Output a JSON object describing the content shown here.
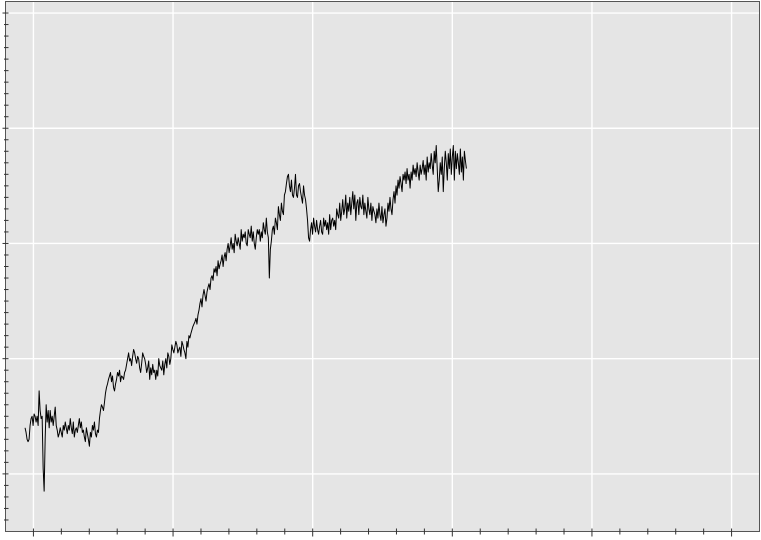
{
  "chart_data": {
    "type": "line",
    "title": "",
    "xlabel": "",
    "ylabel": "",
    "tick_labels_visible": false,
    "grid": true,
    "colors": {
      "panel": "#e5e5e5",
      "grid": "#ffffff",
      "line": "#000000",
      "frame": "#555555"
    },
    "xlim": [
      -0.2,
      5.2
    ],
    "ylim": [
      0.0,
      4.6
    ],
    "x_major_ticks": [
      0,
      1,
      2,
      3,
      4,
      5
    ],
    "x_minor_step": 0.2,
    "y_major_ticks": [
      0.5,
      1.5,
      2.5,
      3.5,
      4.5
    ],
    "y_minor_step": 0.1,
    "series": [
      {
        "x_start": -0.06,
        "x_step": 0.0072,
        "values": [
          0.9,
          0.86,
          0.8,
          0.78,
          0.8,
          0.92,
          0.98,
          1.0,
          0.92,
          1.02,
          1.0,
          0.95,
          1.0,
          0.92,
          1.22,
          1.05,
          0.98,
          1.0,
          0.55,
          0.35,
          0.8,
          1.1,
          0.95,
          1.05,
          0.9,
          1.05,
          0.95,
          1.0,
          0.92,
          1.0,
          1.08,
          0.92,
          0.88,
          0.82,
          0.85,
          0.9,
          0.86,
          0.82,
          0.92,
          0.88,
          0.95,
          0.9,
          0.85,
          0.92,
          0.88,
          0.98,
          0.9,
          0.85,
          0.95,
          0.82,
          0.88,
          0.9,
          0.86,
          0.92,
          0.98,
          0.9,
          0.95,
          0.86,
          0.88,
          0.82,
          0.78,
          0.9,
          0.85,
          0.8,
          0.74,
          0.86,
          0.82,
          0.92,
          0.88,
          0.95,
          0.85,
          0.82,
          0.88,
          0.86,
          0.98,
          1.05,
          1.1,
          1.08,
          1.05,
          1.12,
          1.2,
          1.25,
          1.28,
          1.32,
          1.35,
          1.38,
          1.3,
          1.35,
          1.25,
          1.22,
          1.28,
          1.32,
          1.38,
          1.35,
          1.4,
          1.3,
          1.35,
          1.34,
          1.32,
          1.38,
          1.4,
          1.45,
          1.5,
          1.55,
          1.48,
          1.5,
          1.44,
          1.52,
          1.58,
          1.55,
          1.5,
          1.46,
          1.52,
          1.5,
          1.42,
          1.38,
          1.46,
          1.55,
          1.52,
          1.5,
          1.45,
          1.38,
          1.42,
          1.48,
          1.32,
          1.42,
          1.36,
          1.45,
          1.38,
          1.4,
          1.32,
          1.4,
          1.35,
          1.5,
          1.44,
          1.42,
          1.4,
          1.48,
          1.36,
          1.45,
          1.5,
          1.42,
          1.55,
          1.52,
          1.45,
          1.5,
          1.62,
          1.58,
          1.55,
          1.6,
          1.65,
          1.62,
          1.55,
          1.58,
          1.6,
          1.52,
          1.65,
          1.62,
          1.58,
          1.55,
          1.5,
          1.65,
          1.6,
          1.7,
          1.68,
          1.72,
          1.75,
          1.78,
          1.8,
          1.82,
          1.85,
          1.8,
          1.88,
          1.92,
          1.98,
          2.02,
          1.95,
          2.05,
          2.1,
          2.05,
          2.0,
          2.08,
          2.12,
          2.15,
          2.1,
          2.2,
          2.22,
          2.18,
          2.28,
          2.25,
          2.3,
          2.22,
          2.35,
          2.28,
          2.32,
          2.35,
          2.4,
          2.3,
          2.38,
          2.42,
          2.35,
          2.45,
          2.5,
          2.42,
          2.48,
          2.55,
          2.45,
          2.5,
          2.42,
          2.58,
          2.52,
          2.48,
          2.55,
          2.5,
          2.45,
          2.62,
          2.52,
          2.58,
          2.55,
          2.6,
          2.5,
          2.48,
          2.62,
          2.58,
          2.55,
          2.65,
          2.52,
          2.6,
          2.5,
          2.45,
          2.55,
          2.62,
          2.58,
          2.62,
          2.52,
          2.6,
          2.55,
          2.68,
          2.62,
          2.58,
          2.72,
          2.6,
          2.55,
          2.2,
          2.45,
          2.52,
          2.62,
          2.65,
          2.58,
          2.72,
          2.68,
          2.62,
          2.82,
          2.75,
          2.7,
          2.85,
          2.78,
          2.75,
          2.92,
          2.95,
          3.02,
          3.08,
          3.1,
          3.0,
          2.95,
          3.05,
          2.92,
          2.9,
          2.98,
          3.1,
          2.92,
          2.9,
          3.0,
          3.02,
          2.95,
          2.9,
          2.85,
          3.0,
          2.92,
          2.88,
          2.8,
          2.7,
          2.55,
          2.52,
          2.62,
          2.68,
          2.58,
          2.72,
          2.65,
          2.6,
          2.7,
          2.62,
          2.58,
          2.65,
          2.7,
          2.6,
          2.58,
          2.72,
          2.65,
          2.7,
          2.62,
          2.68,
          2.58,
          2.75,
          2.62,
          2.7,
          2.72,
          2.65,
          2.7,
          2.62,
          2.8,
          2.75,
          2.72,
          2.85,
          2.7,
          2.78,
          2.88,
          2.75,
          2.8,
          2.92,
          2.72,
          2.85,
          2.78,
          2.9,
          2.75,
          2.85,
          2.95,
          2.8,
          2.92,
          2.7,
          2.85,
          2.88,
          2.75,
          2.9,
          2.82,
          2.8,
          2.92,
          2.75,
          2.85,
          2.78,
          2.72,
          2.9,
          2.8,
          2.75,
          2.85,
          2.7,
          2.82,
          2.78,
          2.75,
          2.68,
          2.8,
          2.72,
          2.85,
          2.75,
          2.7,
          2.82,
          2.68,
          2.75,
          2.8,
          2.65,
          2.72,
          2.85,
          2.78,
          2.9,
          2.8,
          2.75,
          2.88,
          2.95,
          2.85,
          3.0,
          2.92,
          3.05,
          2.98,
          3.08,
          3.02,
          2.95,
          3.1,
          3.05,
          3.12,
          3.02,
          3.15,
          3.05,
          3.1,
          2.98,
          3.12,
          3.05,
          3.18,
          3.1,
          3.15,
          3.08,
          3.2,
          3.12,
          3.05,
          3.18,
          3.1,
          3.15,
          3.22,
          3.1,
          3.18,
          3.05,
          3.25,
          3.12,
          3.2,
          3.15,
          3.28,
          3.18,
          3.1,
          3.3,
          3.2,
          3.35,
          3.15,
          2.95,
          3.05,
          3.2,
          3.1,
          3.25,
          2.95,
          3.15,
          3.3,
          3.2,
          3.05,
          3.28,
          3.15,
          3.32,
          3.1,
          3.25,
          3.35,
          3.05,
          3.3,
          3.15,
          3.28,
          3.2,
          3.1,
          3.32,
          3.12,
          3.25,
          3.05,
          3.3,
          3.22,
          3.15
        ]
      }
    ]
  }
}
